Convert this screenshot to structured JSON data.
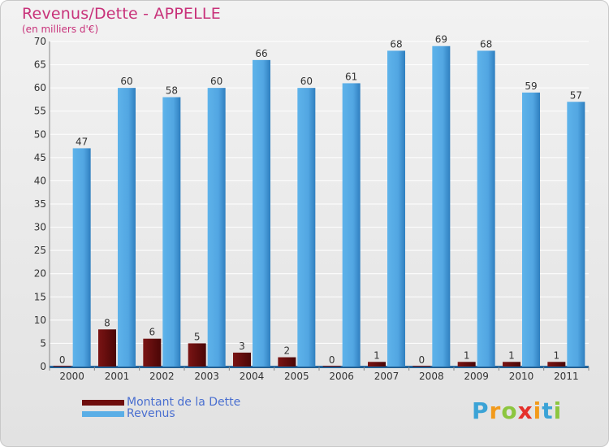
{
  "header": {
    "title": "Revenus/Dette - APPELLE",
    "subtitle": "(en milliers d'€)"
  },
  "legend": {
    "dette_label": "Montant de la Dette",
    "revenus_label": "Revenus"
  },
  "brand": {
    "letters": [
      "P",
      "r",
      "o",
      "x",
      "i",
      "t",
      "i"
    ]
  },
  "colors": {
    "dette": "#6e0d0d",
    "revenus": "#5aaee6",
    "title": "#c8327a",
    "legend_text": "#4a6fd0",
    "gridline": "#ffffff",
    "axis_text": "#333333"
  },
  "chart_data": {
    "type": "bar",
    "title": "Revenus/Dette - APPELLE",
    "ylabel": "(en milliers d'€)",
    "xlabel": "",
    "ylim": [
      0,
      70
    ],
    "yticks": [
      0,
      5,
      10,
      15,
      20,
      25,
      30,
      35,
      40,
      45,
      50,
      55,
      60,
      65,
      70
    ],
    "grid": true,
    "legend_position": "bottom-left",
    "categories": [
      "2000",
      "2001",
      "2002",
      "2003",
      "2004",
      "2005",
      "2006",
      "2007",
      "2008",
      "2009",
      "2010",
      "2011"
    ],
    "series": [
      {
        "name": "Montant de la Dette",
        "values": [
          0,
          8,
          6,
          5,
          3,
          2,
          0,
          1,
          0,
          1,
          1,
          1
        ]
      },
      {
        "name": "Revenus",
        "values": [
          47,
          60,
          58,
          60,
          66,
          60,
          61,
          68,
          69,
          68,
          59,
          57
        ]
      }
    ]
  }
}
